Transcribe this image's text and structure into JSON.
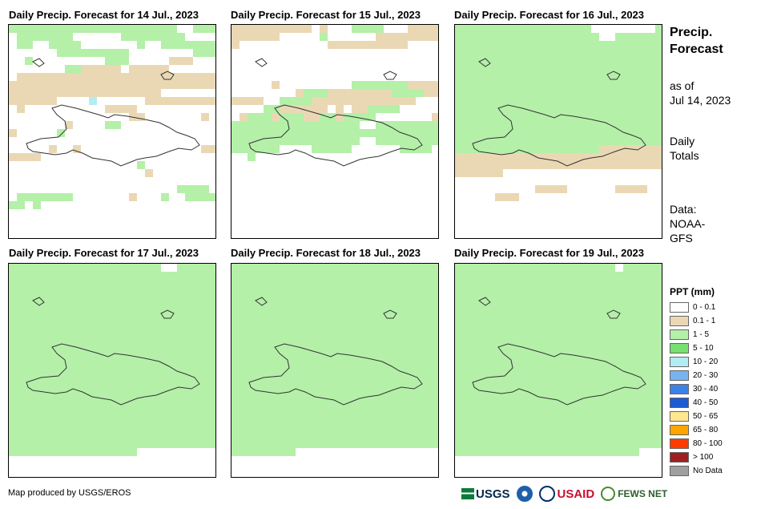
{
  "side": {
    "title": "Precip. Forecast",
    "as_of_label": "as of",
    "as_of_date": "Jul 14, 2023",
    "totals_label": "Daily Totals",
    "data_label": "Data:",
    "data_source": "NOAA-GFS"
  },
  "panels": [
    {
      "title": "Daily Precip. Forecast for 14 Jul., 2023",
      "pattern": "AAAAAAAAAAAAAAAAAAAAA..AAA.AAAAAAA......AAAAAAAA.....AA..AAAA.......A..AAAAAAA......AAAAAAAAA........AAA..A.........AAA.....BBB..........AABBBBB.BBBBB.......BBBBBBBBBBBBBBBBBBBBBBBBBBBBBBBBBBBBBBBBBBBBBBBBBBBBBBBBBBBBBBBBBBBBBB.......BBBBBB....C......BBBBBBBBB.B..........BBBB.........................BB.......B........B....AA............B.....A..................................................B..B...............BBBBBB......................................A..........................B.......................................................AAAA..AAAAAAA.......B...A..AAAAAA.A..........................................................."
    },
    {
      "title": "Daily Precip. Forecast for 15 Jul., 2023",
      "pattern": "BBBBBBBBBB.B...AAAA...BBBBBBBBBB.....A......BBBBBBBBB...........BBBBBBBBBB.................................................................................................................B.........AAAAAAABBBB........BAAABBBBBBBBAAAABBBBBB..AAAABBBBBBBBBBBBB.......AABBBBBB.B.BBAAAA......BAAABAAABBAABAAAA.......BAAAAAAAAAAAAAAAA..AAAAAAAAAAAAAAAAAAAAAAAAAAAAAAAAAAAAAAAAAAAAAAAAAA..AAAAAAAAAAAAAA....AAAAA......AAAA...A.............................................................................................................................................................................................................................................................................................................................................................................................................................."
    },
    {
      "title": "Daily Precip. Forecast for 16 Jul., 2023",
      "pattern": "AAAAAAAAAAAAAAAAA........AAAAAAAAAAAAAAAAAAA..AAAAAAAAAAAAAAAAAAAAAAAAAAAAAAAAAAAAAAAAAAAAAAAAAAAAAAAAAAAAAAAAAAAAAAAAAAAAAAAAAAAAAAAAAAAAAAAAAAAAAAAAAAAAAAAAAAAAAAAAAAAAAAAAAAAAAAAAAAAAAAAAAAAAAAAAAAAAAAAAAAAAAAAAAAAAAAAAAAAAAAAAAAAAAAAAAAAAAAAAAAAAAAAAAAAAAAAAAAAAAAAAAAAAAAAAAAAAAAAAAAAAAAAAAAAAAAAAAAAAAAAAAAAAAAAAAAAAAAAAAAAAAAAAAAAAAAAAAAAAAAAAAAAAAAAAAAAAAAAAAAAAAAAAAAAAAAAAAAAAAAAAAAAAAAAAAAAAAAAAAABBBBBBBBBBBBBBBBBBBBBBBBBBBBBBBBBBBBBBBBBBBBBBBBBBBBBBBBBBBBBBBBBB........................................................BBBB......BBBB.......BBB............................................................................................................................................................................"
    },
    {
      "title": "Daily Precip. Forecast for 17 Jul., 2023",
      "pattern": "AAAAAAAAAAAAAAAAAAA..AAAAAAAAAAAAAAAAAAAAAAAAAAAAAAAAAAAAAAAAAAAAAAAAAAAAAAAAAAAAAAAAAAAAAAAAAAAAAAAAAAAAAAAAAAAAAAAAAAAAAAAAAAAAAAAAAAAAAAAAAAAAAAAAAAAAAAAAAAAAAAAAAAAAAAAAAAAAAAAAAAAAAAAAAAAAAAAAAAAAAAAAAAAAAAAAAAAAAAAAAAAAAAAAAAAAAAAAAAAAAAAAAAAAAAAAAAAAAAAAAAAAAAAAAAAAAAAAAAAAAAAAAAAAAAAAAAAAAAAAAAAAAAAAAAAAAAAAAAAAAAAAAAAAAAAAAAAAAAAAAAAAAAAAAAAAAAAAAAAAAAAAAAAAAAAAAAAAAAAAAAAAAAAAAAAAAAAAAAAAAAAAAAAAAAAAAAAAAAAAAAAAAAAAAAAAAAAAAAAAAAAAAAAAAAAAAAAAAAAAAAAAAAAAAAAAAAAAAAAAAAAAAAAAAAAAAAAAAAAAAAAAAAAAAAAAAAAAAAAAAAAAAAAAAAAAAAAAAAAAAAAAAAAAAAAAAAAAAAAAAAAAAAAAAAAAAAAAAAAAAAAAAAAAAAAAAAAAAAAAAAAAAAAAAAAAA"
    },
    {
      "title": "Daily Precip. Forecast for 18 Jul., 2023",
      "pattern": "AAAAAAAAAAAAAAAAAAAAAAAAAAAAAAAAAAAAAAAAAAAAAAAAAAAAAAAAAAAAAAAAAAAAAAAAAAAAAAAAAAAAAAAAAAAAAAAAAAAAAAAAAAAAAAAAAAAAAAAAAAAAAAAAAAAAAAAAAAAAAAAAAAAAAAAAAAAAAAAAAAAAAAAAAAAAAAAAAAAAAAAAAAAAAAAAAAAAAAAAAAAAAAAAAAAAAAAAAAAAAAAAAAAAAAAAAAAAAAAAAAAAAAAAAAAAAAAAAAAAAAAAAAAAAAAAAAAAAAAAAAAAAAAAAAAAAAAAAAAAAAAAAAAAAAAAAAAAAAAAAAAAAAAAAAAAAAAAAAAAAAAAAAAAAAAAAAAAAAAAAAAAAAAAAAAAAAAAAAAAAAAAAAAAAAAAAAAAAAAAAAAAAAAAAAAAAAAAAAAAAAAAAAAAAAAAAAAAAAAAAAAAAAAAAAAAAAAAAAAAAAAAAAAAAAAAAAAAAAAAAAAAAAAAAAAAAAAAAAAAAAAAAAAAAAAAAAAAAAAAAAAAAAAAAAAAAAAAAAAAAAAAAAAAAAAAAAAAAAAAAAAAAAAAAAAAAAAAAAAAAAAAAAAAAAAAAAAAAAAAAAAAAA"
    },
    {
      "title": "Daily Precip. Forecast for 19 Jul., 2023",
      "pattern": "AAAAAAAAAAAAAAAAAAAA.AAAAAAAAAAAAAAAAAAAAAAAAAAAAAAAAAAAAAAAAAAAAAAAAAAAAAAAAAAAAAAAAAAAAAAAAAAAAAAAAAAAAAAAAAAAAAAAAAAAAAAAAAAAAAAAAAAAAAAAAAAAAAAAAAAAAAAAAAAAAAAAAAAAAAAAAAAAAAAAAAAAAAAAAAAAAAAAAAAAAAAAAAAAAAAAAAAAAAAAAAAAAAAAAAAAAAAAAAAAAAAAAAAAAAAAAAAAAAAAAAAAAAAAAAAAAAAAAAAAAAAAAAAAAAAAAAAAAAAAAAAAAAAAAAAAAAAAAAAAAAAAAAAAAAAAAAAAAAAAAAAAAAAAAAAAAAAAAAAAAAAAAAAAAAAAAAAAAAAAAAAAAAAAAAAAAAAAAAAAAAAAAAAAAAAAAAAAAAAAAAAAAAAAAAAAAAAAAAAAAAAAAAAAAAAAAAAAAAAAAAAAAAAAAAAAAAAAAAAAAAAAAAAAAAAAAAAAAAAAAAAAAAAAAAAAAAAAAAAAAAAAAAAAAAAAAAAAAAAAAAAAAAAAAAAAAAAAAAAAAAAAAAAAAAAAAAAAAAAAAAAAAAAAAAAAAAAAAAAAAAAAAAAAAAAAAAAAAAAAA"
    }
  ],
  "legend": {
    "title": "PPT (mm)",
    "items": [
      {
        "label": "0 - 0.1",
        "color": "#ffffff"
      },
      {
        "label": "0.1 - 1",
        "color": "#ead8b4"
      },
      {
        "label": "1 - 5",
        "color": "#b4f0a8"
      },
      {
        "label": "5 - 10",
        "color": "#78e070"
      },
      {
        "label": "10 - 20",
        "color": "#b4ecf4"
      },
      {
        "label": "20 - 30",
        "color": "#78b4f0"
      },
      {
        "label": "30 - 40",
        "color": "#3c82e6"
      },
      {
        "label": "40 - 50",
        "color": "#1e5ad2"
      },
      {
        "label": "50 - 65",
        "color": "#ffe890"
      },
      {
        "label": "65 - 80",
        "color": "#ffa500"
      },
      {
        "label": "80 - 100",
        "color": "#ff3c00"
      },
      {
        "label": "> 100",
        "color": "#a02020"
      },
      {
        "label": "No Data",
        "color": "#a0a0a0"
      }
    ]
  },
  "footer": {
    "credit": "Map produced by USGS/EROS",
    "logos": {
      "usgs": "USGS",
      "usaid": "USAID",
      "fews": "FEWS NET"
    }
  }
}
